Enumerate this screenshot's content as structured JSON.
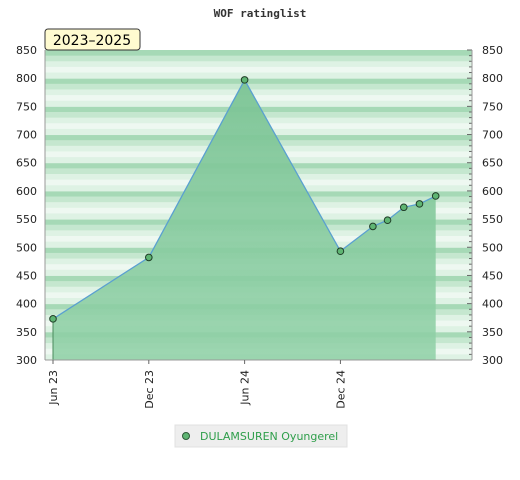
{
  "chart_data": {
    "type": "area",
    "title": "WOF ratinglist",
    "period_label": "2023–2025",
    "xlabel": "",
    "ylabel": "",
    "ylim": [
      300,
      850
    ],
    "y_ticks": [
      300,
      350,
      400,
      450,
      500,
      550,
      600,
      650,
      700,
      750,
      800,
      850
    ],
    "x_ticks": [
      "Jun 23",
      "Dec 23",
      "Jun 24",
      "Dec 24"
    ],
    "legend_position": "bottom-center",
    "grid": true,
    "colors": {
      "fill": "#7cc495",
      "line": "#5aa0d0",
      "marker": "#5fb573",
      "legend_text": "#2e9e4a"
    },
    "series": [
      {
        "name": "DULAMSUREN Oyungerel",
        "points": [
          {
            "x": "2023-06",
            "y": 373
          },
          {
            "x": "2023-12",
            "y": 482
          },
          {
            "x": "2024-06",
            "y": 797
          },
          {
            "x": "2024-12",
            "y": 493
          },
          {
            "x": "2025-02",
            "y": 537
          },
          {
            "x": "2025-03",
            "y": 548
          },
          {
            "x": "2025-04",
            "y": 571
          },
          {
            "x": "2025-05",
            "y": 577
          },
          {
            "x": "2025-06",
            "y": 591
          }
        ]
      }
    ]
  }
}
